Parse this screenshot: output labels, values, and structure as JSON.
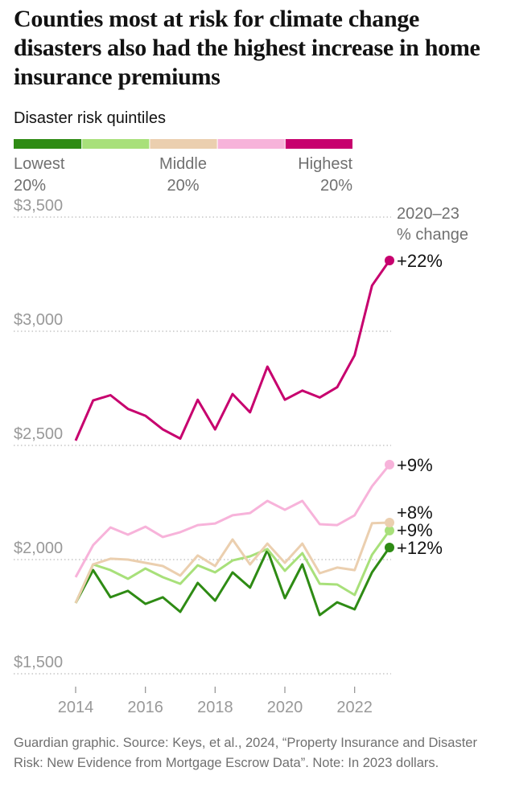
{
  "chart_data": {
    "type": "line",
    "title": "Counties most at risk for climate change disasters also had the highest increase in home insurance premiums",
    "legend_title": "Disaster risk quintiles",
    "legend_labels": [
      [
        "Lowest",
        "20%"
      ],
      null,
      [
        "Middle",
        "20%"
      ],
      null,
      [
        "Highest",
        "20%"
      ]
    ],
    "change_heading": [
      "2020–23",
      "% change"
    ],
    "x": [
      2014,
      2014.5,
      2015,
      2015.5,
      2016,
      2016.5,
      2017,
      2017.5,
      2018,
      2018.5,
      2019,
      2019.5,
      2020,
      2020.5,
      2021,
      2021.5,
      2022,
      2022.5,
      2023
    ],
    "xlim": [
      2014,
      2023
    ],
    "xticks": [
      2014,
      2016,
      2018,
      2020,
      2022
    ],
    "ylim": [
      1500,
      3500
    ],
    "yticks": [
      {
        "value": 1500,
        "label": "$1,500"
      },
      {
        "value": 2000,
        "label": "$2,000"
      },
      {
        "value": 2500,
        "label": "$2,500"
      },
      {
        "value": 3000,
        "label": "$3,000"
      },
      {
        "value": 3500,
        "label": "$3,500"
      }
    ],
    "grid": true,
    "series": [
      {
        "color": "#2e8b14",
        "change_label": "+12%",
        "values": [
          1810,
          1954,
          1835,
          1863,
          1806,
          1835,
          1771,
          1898,
          1820,
          1944,
          1877,
          2042,
          1831,
          1979,
          1757,
          1813,
          1782,
          1944,
          2053
        ]
      },
      {
        "color": "#a8e07a",
        "change_label": "+9%",
        "values": [
          1810,
          1979,
          1954,
          1916,
          1961,
          1923,
          1894,
          1975,
          1944,
          1996,
          2014,
          2046,
          1951,
          2028,
          1894,
          1891,
          1845,
          2021,
          2127
        ]
      },
      {
        "color": "#ebcfaf",
        "change_label": "+8%",
        "values": [
          1810,
          1979,
          2004,
          2000,
          1986,
          1972,
          1930,
          2018,
          1972,
          2088,
          1979,
          2070,
          1986,
          2070,
          1940,
          1965,
          1954,
          2159,
          2162
        ]
      },
      {
        "color": "#f7b3da",
        "change_label": "+9%",
        "values": [
          1923,
          2063,
          2141,
          2109,
          2144,
          2099,
          2120,
          2151,
          2158,
          2194,
          2204,
          2257,
          2218,
          2257,
          2155,
          2151,
          2194,
          2321,
          2416
        ]
      },
      {
        "color": "#c7006e",
        "change_label": "+22%",
        "values": [
          2521,
          2697,
          2720,
          2660,
          2630,
          2570,
          2530,
          2700,
          2570,
          2725,
          2645,
          2845,
          2700,
          2740,
          2710,
          2755,
          2895,
          3200,
          3310
        ]
      }
    ],
    "source": "Guardian graphic. Source: Keys, et al., 2024, “Property Insurance and Disaster Risk: New Evidence from Mortgage Escrow Data”. Note: In 2023 dollars."
  }
}
